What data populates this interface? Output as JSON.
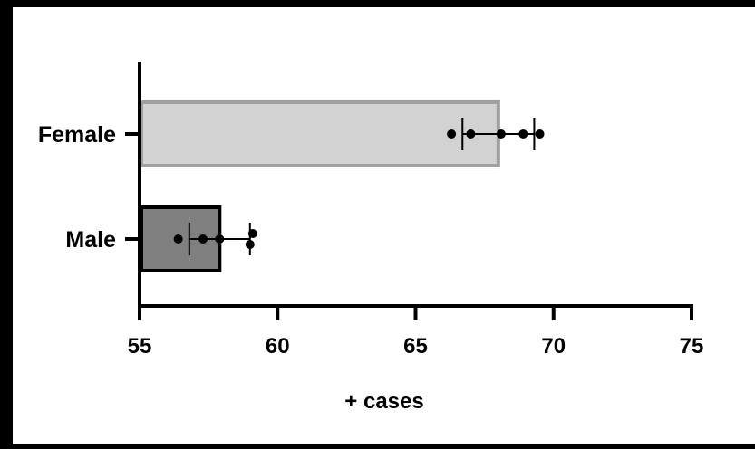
{
  "chart_data": {
    "type": "bar",
    "orientation": "horizontal",
    "xlabel": "+ cases",
    "xlim": [
      55,
      75
    ],
    "xticks": [
      "55",
      "60",
      "65",
      "70",
      "75"
    ],
    "categories": [
      "Female",
      "Male"
    ],
    "values": [
      68.0,
      57.9
    ],
    "error_low": [
      66.7,
      56.8
    ],
    "error_high": [
      69.3,
      59.0
    ],
    "points": [
      [
        66.3,
        67.0,
        68.1,
        68.9,
        69.5
      ],
      [
        56.4,
        57.3,
        57.9,
        59.0,
        59.1
      ]
    ],
    "bar_fills": [
      "#d2d2d2",
      "#808080"
    ],
    "bar_strokes": [
      "#a0a0a0",
      "#000000"
    ],
    "grid": false,
    "legend": "none"
  }
}
